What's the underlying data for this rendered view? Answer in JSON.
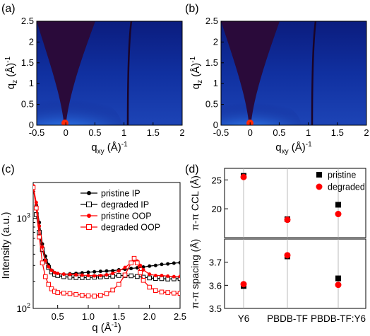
{
  "panel_labels": [
    "(a)",
    "(b)",
    "(c)",
    "(d)"
  ],
  "colors": {
    "pristine": "#000000",
    "degraded": "#ff0000",
    "giwaxs_background": "#0d1f86",
    "giwaxs_blind": "#2a0a3a"
  },
  "chart_data": [
    {
      "id": "a",
      "type": "heatmap",
      "xlabel": "q",
      "xlabel_sub": "xy",
      "xlabel_unit": "(Å)",
      "xlabel_exp": "-1",
      "ylabel": "q",
      "ylabel_sub": "z",
      "ylabel_unit": "(Å)",
      "ylabel_exp": "-1",
      "xlim": [
        -0.5,
        2
      ],
      "ylim": [
        0,
        2.5
      ],
      "xticks": [
        "-0.5",
        "0",
        "0.5",
        "1",
        "1.5",
        "2"
      ],
      "yticks": [
        "0",
        "0.5",
        "1",
        "1.5",
        "2",
        "2.5"
      ]
    },
    {
      "id": "b",
      "type": "heatmap",
      "xlabel": "q",
      "xlabel_sub": "xy",
      "xlabel_unit": "(Å)",
      "xlabel_exp": "-1",
      "ylabel": "q",
      "ylabel_sub": "z",
      "ylabel_unit": "(Å)",
      "ylabel_exp": "-1",
      "xlim": [
        -0.5,
        2
      ],
      "ylim": [
        0,
        2.5
      ],
      "xticks": [
        "-0.5",
        "0",
        "0.5",
        "1",
        "1.5",
        "2"
      ],
      "yticks": [
        "0",
        "0.5",
        "1",
        "1.5",
        "2",
        "2.5"
      ]
    },
    {
      "id": "c",
      "type": "line",
      "xlabel": "q (Å",
      "xlabel_exp": "-1",
      "xlabel_close": ")",
      "ylabel": "Intensity (a.u.)",
      "xlim": [
        0.1,
        2.5
      ],
      "ylim": [
        100,
        2500
      ],
      "ylog": true,
      "xticks": [
        "0.5",
        "1.0",
        "1.5",
        "2.0",
        "2.5"
      ],
      "ytick_labels": [
        {
          "base": "10",
          "exp": "2",
          "value": 100
        },
        {
          "base": "10",
          "exp": "3",
          "value": 1000
        }
      ],
      "legend_position": "top-right",
      "series": [
        {
          "name": "pristine IP",
          "color": "#000000",
          "marker": "filled-circle",
          "x": [
            0.15,
            0.2,
            0.25,
            0.3,
            0.35,
            0.4,
            0.45,
            0.5,
            0.6,
            0.7,
            0.8,
            0.9,
            1.0,
            1.1,
            1.2,
            1.3,
            1.4,
            1.5,
            1.6,
            1.7,
            1.8,
            1.9,
            2.0,
            2.1,
            2.2,
            2.3,
            2.4,
            2.5
          ],
          "y": [
            1400,
            900,
            520,
            380,
            305,
            265,
            248,
            242,
            240,
            242,
            245,
            248,
            252,
            255,
            258,
            260,
            262,
            268,
            272,
            278,
            282,
            288,
            295,
            300,
            308,
            312,
            318,
            322
          ]
        },
        {
          "name": "degraded IP",
          "color": "#000000",
          "marker": "open-square",
          "x": [
            0.15,
            0.2,
            0.25,
            0.3,
            0.35,
            0.4,
            0.45,
            0.5,
            0.6,
            0.7,
            0.8,
            0.9,
            1.0,
            1.1,
            1.2,
            1.3,
            1.4,
            1.5,
            1.6,
            1.7,
            1.8,
            1.9,
            2.0,
            2.1,
            2.2,
            2.3,
            2.4,
            2.5
          ],
          "y": [
            1100,
            700,
            450,
            335,
            285,
            255,
            240,
            232,
            225,
            222,
            220,
            220,
            220,
            222,
            224,
            226,
            228,
            232,
            232,
            230,
            226,
            222,
            218,
            215,
            214,
            212,
            213,
            214
          ]
        },
        {
          "name": "pristine OOP",
          "color": "#ff0000",
          "marker": "filled-circle",
          "x": [
            0.1,
            0.15,
            0.2,
            0.25,
            0.3,
            0.35,
            0.4,
            0.45,
            0.5,
            0.6,
            0.7,
            0.8,
            0.9,
            1.0,
            1.1,
            1.2,
            1.3,
            1.4,
            1.5,
            1.6,
            1.7,
            1.75,
            1.8,
            1.85,
            1.9,
            2.0,
            2.1,
            2.2,
            2.3,
            2.4,
            2.5
          ],
          "y": [
            2300,
            1500,
            820,
            480,
            340,
            290,
            265,
            250,
            245,
            240,
            238,
            236,
            234,
            232,
            230,
            232,
            236,
            245,
            260,
            285,
            320,
            345,
            335,
            300,
            268,
            240,
            232,
            232,
            228,
            225,
            226
          ]
        },
        {
          "name": "degraded OOP",
          "color": "#ff0000",
          "marker": "open-square",
          "x": [
            0.1,
            0.15,
            0.2,
            0.25,
            0.3,
            0.35,
            0.4,
            0.45,
            0.5,
            0.6,
            0.7,
            0.8,
            0.9,
            1.0,
            1.1,
            1.2,
            1.3,
            1.4,
            1.5,
            1.6,
            1.7,
            1.75,
            1.8,
            1.85,
            1.9,
            2.0,
            2.1,
            2.2,
            2.3,
            2.4,
            2.5
          ],
          "y": [
            2200,
            1300,
            620,
            320,
            225,
            185,
            165,
            155,
            150,
            148,
            146,
            143,
            140,
            138,
            137,
            140,
            146,
            160,
            185,
            235,
            320,
            360,
            320,
            250,
            205,
            172,
            158,
            152,
            150,
            148,
            147
          ]
        }
      ]
    },
    {
      "id": "d_top",
      "type": "scatter",
      "ylabel": "π-π CCL (Å)",
      "categories": [
        "Y6",
        "PBDB-TF",
        "PBDB-TF:Y6"
      ],
      "ylim": [
        15,
        27
      ],
      "yticks": [
        "20",
        "25"
      ],
      "yticks_values": [
        20,
        25
      ],
      "legend_position": "top-right",
      "series": [
        {
          "name": "pristine",
          "color": "#000000",
          "marker": "square",
          "values": [
            25.7,
            18.2,
            20.7
          ]
        },
        {
          "name": "degraded",
          "color": "#ff0000",
          "marker": "circle",
          "values": [
            25.5,
            18.1,
            19.1
          ]
        }
      ]
    },
    {
      "id": "d_bottom",
      "type": "scatter",
      "ylabel": "π-π spacing (Å)",
      "xlabel": "",
      "categories": [
        "Y6",
        "PBDB-TF",
        "PBDB-TF:Y6"
      ],
      "ylim": [
        3.5,
        3.8
      ],
      "yticks": [
        "3.5",
        "3.6",
        "3.7"
      ],
      "yticks_values": [
        3.5,
        3.6,
        3.7
      ],
      "series": [
        {
          "name": "pristine",
          "color": "#000000",
          "marker": "square",
          "values": [
            3.597,
            3.725,
            3.63
          ]
        },
        {
          "name": "degraded",
          "color": "#ff0000",
          "marker": "circle",
          "values": [
            3.605,
            3.73,
            3.602
          ]
        }
      ]
    }
  ]
}
